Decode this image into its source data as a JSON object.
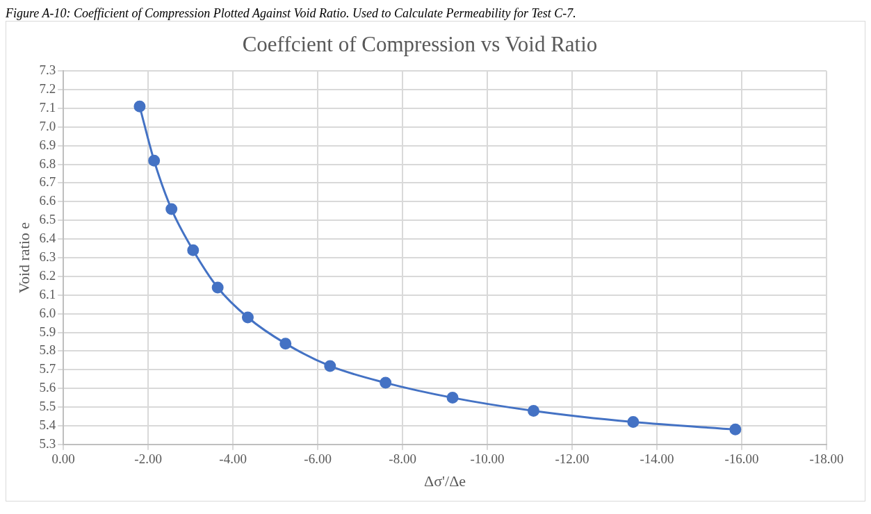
{
  "chart_data": {
    "type": "line",
    "title": "Coeffcient of Compression vs Void Ratio",
    "xlabel": "Δσ'/Δe",
    "ylabel": "Void ratio e",
    "annotations": [
      "Figure A-10: Coefficient of Compression Plotted Against Void Ratio. Used to Calculate Permeability for Test C-7."
    ],
    "series": [
      {
        "color": "#4472c4",
        "line_style": "solid",
        "marker": "circle",
        "x": [
          -1.8,
          -2.14,
          -2.55,
          -3.06,
          -3.64,
          -4.35,
          -5.24,
          -6.29,
          -7.6,
          -9.18,
          -11.09,
          -13.44,
          -15.85
        ],
        "values": [
          7.11,
          6.82,
          6.56,
          6.34,
          6.14,
          5.98,
          5.84,
          5.72,
          5.63,
          5.55,
          5.48,
          5.42,
          5.38
        ]
      }
    ],
    "xlim": [
      0,
      -18
    ],
    "xticks": [
      {
        "value": 0,
        "label": "0.00"
      },
      {
        "value": -2,
        "label": "-2.00"
      },
      {
        "value": -4,
        "label": "-4.00"
      },
      {
        "value": -6,
        "label": "-6.00"
      },
      {
        "value": -8,
        "label": "-8.00"
      },
      {
        "value": -10,
        "label": "-10.00"
      },
      {
        "value": -12,
        "label": "-12.00"
      },
      {
        "value": -14,
        "label": "-14.00"
      },
      {
        "value": -16,
        "label": "-16.00"
      },
      {
        "value": -18,
        "label": "-18.00"
      }
    ],
    "ylim": [
      5.3,
      7.3
    ],
    "yticks": [
      5.3,
      5.4,
      5.5,
      5.6,
      5.7,
      5.8,
      5.9,
      {
        "value": 6,
        "label": "6.0"
      },
      6.1,
      6.2,
      6.3,
      6.4,
      6.5,
      6.6,
      6.7,
      6.8,
      6.9,
      {
        "value": 7,
        "label": "7.0"
      },
      7.1,
      7.2,
      7.3
    ],
    "grid": true,
    "legend": false
  }
}
